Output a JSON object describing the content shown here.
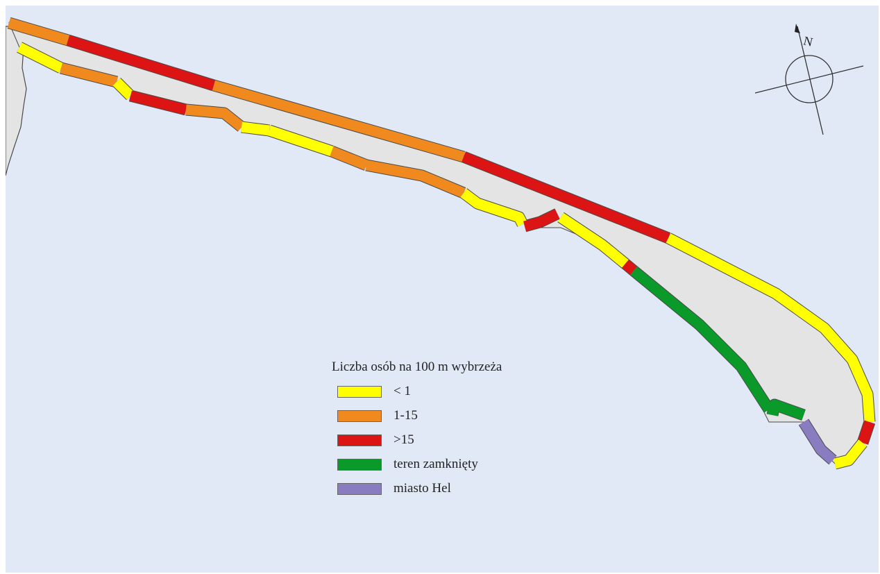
{
  "legend": {
    "title": "Liczba osób na 100 m wybrzeża",
    "items": [
      {
        "label": "< 1",
        "color": "#ffff00"
      },
      {
        "label": "1-15",
        "color": "#f08a1e"
      },
      {
        "label": ">15",
        "color": "#dc1414"
      },
      {
        "label": "teren zamknięty",
        "color": "#0a9a2a"
      },
      {
        "label": "miasto Hel",
        "color": "#8a7cc0"
      }
    ]
  },
  "compass": {
    "north_label": "N"
  },
  "colors": {
    "sea": "#e1e9f6",
    "land": "#e4e4e4",
    "outline": "#4a4a4a"
  }
}
